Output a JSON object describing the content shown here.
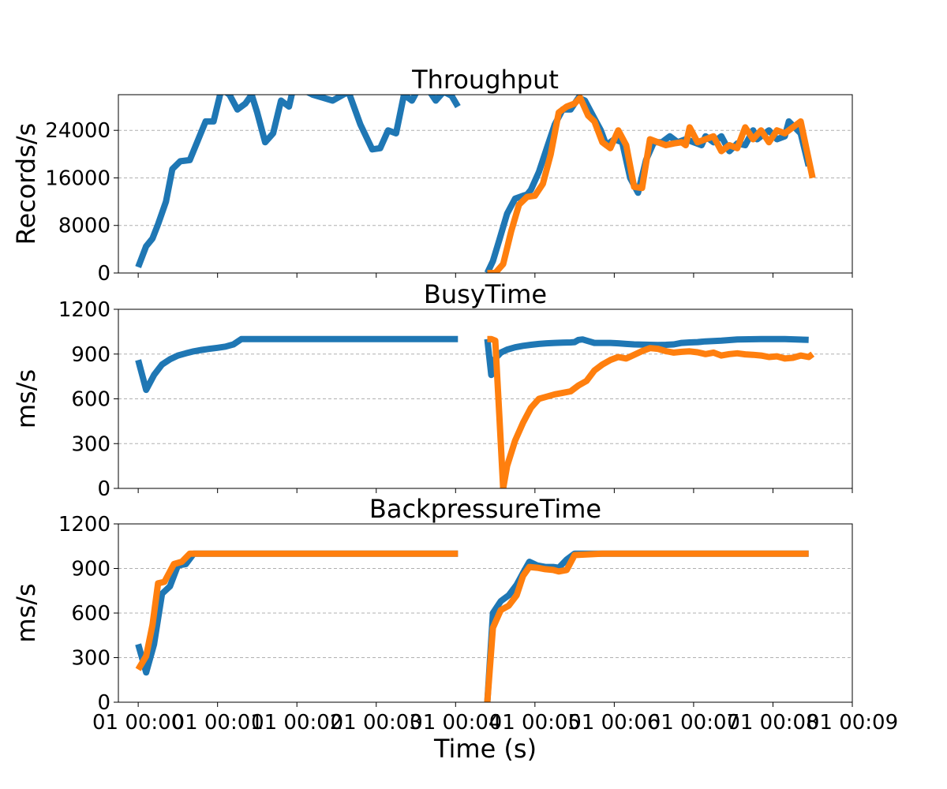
{
  "chart_data": {
    "type": "line",
    "xlabel": "Time (s)",
    "x_tick_labels": [
      "01 00:00",
      "01 00:01",
      "01 00:02",
      "01 00:03",
      "01 00:04",
      "01 00:05",
      "01 00:06",
      "01 00:07",
      "01 00:08",
      "01 00:09"
    ],
    "colors": {
      "series_a": "#1f77b4",
      "series_b": "#ff7f0e"
    },
    "grid": "y-dashed",
    "panels": [
      {
        "title": "Throughput",
        "ylabel": "Records/s",
        "ylim": [
          0,
          30000
        ],
        "yticks": [
          0,
          8000,
          16000,
          24000
        ],
        "series": [
          {
            "color": "#1f77b4",
            "x": [
              0.15,
              0.25,
              0.33,
              0.4,
              0.5,
              0.58,
              0.68,
              0.8,
              1.0,
              1.1,
              1.2,
              1.3,
              1.4,
              1.5,
              1.58,
              1.65,
              1.75,
              1.85,
              1.95,
              2.05,
              2.12,
              2.2,
              2.35,
              2.6,
              2.8,
              2.95,
              3.1,
              3.2,
              3.3,
              3.4,
              3.5,
              3.6,
              3.7,
              3.8,
              3.9,
              4.0,
              4.1,
              4.18
            ],
            "y": [
              1000,
              4500,
              5800,
              8200,
              12000,
              17500,
              18800,
              19000,
              25500,
              25500,
              31000,
              30000,
              27500,
              28500,
              30000,
              27000,
              22000,
              23500,
              29000,
              28000,
              32000,
              31000,
              30000,
              29000,
              30500,
              25000,
              20800,
              21000,
              24000,
              23500,
              30000,
              29000,
              31500,
              31000,
              29000,
              30500,
              29800,
              28000
            ]
          },
          {
            "color": "#1f77b4",
            "x": [
              4.55,
              4.62,
              4.7,
              4.8,
              4.9,
              5.0,
              5.05,
              5.1,
              5.2,
              5.3,
              5.4,
              5.5,
              5.6,
              5.7,
              5.78,
              5.9,
              5.98,
              6.05,
              6.15,
              6.25,
              6.35,
              6.45,
              6.55,
              6.65,
              6.75,
              6.85,
              6.95,
              7.05,
              7.15,
              7.25,
              7.3,
              7.4,
              7.5,
              7.6,
              7.7,
              7.8,
              7.9,
              7.95,
              8.1,
              8.2,
              8.3,
              8.35,
              8.5,
              8.6
            ],
            "y": [
              0,
              2000,
              5500,
              10000,
              12500,
              13000,
              13200,
              14000,
              17000,
              21000,
              25000,
              27500,
              27500,
              29500,
              29000,
              26000,
              24000,
              21500,
              22500,
              22000,
              16000,
              13500,
              19000,
              22000,
              22000,
              23000,
              22000,
              22500,
              22000,
              21500,
              23000,
              22000,
              23000,
              20500,
              21800,
              21500,
              24000,
              22500,
              24000,
              22500,
              23000,
              25500,
              23500,
              18000
            ]
          },
          {
            "color": "#ff7f0e",
            "x": [
              4.55,
              4.65,
              4.75,
              4.85,
              4.95,
              5.05,
              5.15,
              5.25,
              5.35,
              5.45,
              5.55,
              5.65,
              5.72,
              5.82,
              5.9,
              6.0,
              6.1,
              6.2,
              6.3,
              6.4,
              6.5,
              6.6,
              6.7,
              6.8,
              6.9,
              7.0,
              7.05,
              7.1,
              7.2,
              7.3,
              7.4,
              7.5,
              7.6,
              7.7,
              7.8,
              7.9,
              8.0,
              8.1,
              8.2,
              8.3,
              8.4,
              8.5,
              8.65
            ],
            "y": [
              0,
              0,
              1500,
              7000,
              11500,
              12800,
              13000,
              15000,
              20000,
              27000,
              28000,
              28500,
              29500,
              26500,
              25500,
              22000,
              21000,
              24000,
              21500,
              14500,
              14300,
              22500,
              22000,
              21500,
              21800,
              22000,
              21500,
              24500,
              22000,
              22500,
              23000,
              20500,
              21500,
              21000,
              24500,
              22500,
              24000,
              22000,
              24000,
              23500,
              24500,
              25500,
              16000
            ]
          }
        ]
      },
      {
        "title": "BusyTime",
        "ylabel": "ms/s",
        "ylim": [
          0,
          1200
        ],
        "yticks": [
          0,
          300,
          600,
          900,
          1200
        ],
        "series": [
          {
            "color": "#1f77b4",
            "x": [
              0.15,
              0.25,
              0.35,
              0.45,
              0.55,
              0.65,
              0.75,
              0.85,
              0.95,
              1.05,
              1.15,
              1.25,
              1.35,
              1.45,
              1.5,
              1.7,
              2.0,
              3.0,
              4.0,
              4.18
            ],
            "y": [
              860,
              660,
              760,
              830,
              865,
              890,
              905,
              918,
              928,
              935,
              942,
              950,
              965,
              1000,
              1000,
              1000,
              1000,
              1000,
              1000,
              1000
            ]
          },
          {
            "color": "#1f77b4",
            "x": [
              4.55,
              4.6,
              4.65,
              4.72,
              4.8,
              4.9,
              5.0,
              5.1,
              5.2,
              5.3,
              5.4,
              5.5,
              5.6,
              5.65,
              5.7,
              5.75,
              5.8,
              5.9,
              6.0,
              6.1,
              6.2,
              6.3,
              6.4,
              6.5,
              6.6,
              6.7,
              6.8,
              6.9,
              7.0,
              7.1,
              7.2,
              7.3,
              7.5,
              7.7,
              8.0,
              8.3,
              8.6
            ],
            "y": [
              1000,
              760,
              870,
              910,
              930,
              945,
              955,
              962,
              968,
              972,
              975,
              977,
              978,
              980,
              995,
              998,
              990,
              975,
              975,
              975,
              972,
              968,
              965,
              963,
              962,
              961,
              962,
              965,
              975,
              978,
              980,
              985,
              990,
              998,
              1000,
              1000,
              995
            ]
          },
          {
            "color": "#ff7f0e",
            "x": [
              4.55,
              4.6,
              4.65,
              4.7,
              4.75,
              4.8,
              4.9,
              5.0,
              5.1,
              5.2,
              5.3,
              5.4,
              5.5,
              5.6,
              5.7,
              5.8,
              5.9,
              6.0,
              6.1,
              6.2,
              6.3,
              6.4,
              6.5,
              6.6,
              6.7,
              6.8,
              6.9,
              7.0,
              7.1,
              7.2,
              7.3,
              7.4,
              7.5,
              7.6,
              7.7,
              7.8,
              7.9,
              8.0,
              8.1,
              8.2,
              8.3,
              8.4,
              8.5,
              8.6,
              8.65
            ],
            "y": [
              1000,
              1000,
              990,
              500,
              0,
              150,
              320,
              440,
              540,
              600,
              615,
              630,
              640,
              650,
              690,
              720,
              790,
              830,
              860,
              880,
              870,
              895,
              920,
              940,
              935,
              920,
              910,
              915,
              918,
              912,
              900,
              910,
              890,
              900,
              905,
              898,
              895,
              890,
              880,
              885,
              870,
              875,
              890,
              880,
              900
            ]
          }
        ]
      },
      {
        "title": "BackpressureTime",
        "ylabel": "ms/s",
        "ylim": [
          0,
          1200
        ],
        "yticks": [
          0,
          300,
          600,
          900,
          1200
        ],
        "series": [
          {
            "color": "#1f77b4",
            "x": [
              0.15,
              0.25,
              0.35,
              0.45,
              0.55,
              0.65,
              0.75,
              0.85,
              1.0,
              1.5,
              2.0,
              3.0,
              4.0,
              4.18
            ],
            "y": [
              390,
              200,
              390,
              730,
              780,
              920,
              930,
              1000,
              1000,
              1000,
              1000,
              1000,
              1000,
              1000
            ]
          },
          {
            "color": "#1f77b4",
            "x": [
              4.55,
              4.62,
              4.72,
              4.82,
              4.92,
              5.0,
              5.08,
              5.18,
              5.28,
              5.38,
              5.45,
              5.55,
              5.65,
              6.0,
              7.0,
              8.0,
              8.6
            ],
            "y": [
              0,
              600,
              680,
              720,
              790,
              870,
              945,
              920,
              910,
              910,
              905,
              960,
              1000,
              1000,
              1000,
              1000,
              1000
            ]
          },
          {
            "color": "#ff7f0e",
            "x": [
              0.15,
              0.25,
              0.33,
              0.4,
              0.48,
              0.6,
              0.7,
              0.8,
              0.88,
              1.0,
              1.5,
              2.0,
              3.0,
              4.0,
              4.18
            ],
            "y": [
              220,
              310,
              520,
              800,
              810,
              930,
              945,
              1000,
              1000,
              1000,
              1000,
              1000,
              1000,
              1000,
              1000
            ]
          },
          {
            "color": "#ff7f0e",
            "x": [
              4.55,
              4.62,
              4.72,
              4.82,
              4.92,
              5.0,
              5.08,
              5.18,
              5.28,
              5.38,
              5.45,
              5.55,
              5.65,
              6.0,
              7.0,
              8.0,
              8.6
            ],
            "y": [
              0,
              500,
              620,
              650,
              720,
              850,
              910,
              905,
              895,
              890,
              880,
              890,
              990,
              1000,
              1000,
              1000,
              1000
            ]
          }
        ]
      }
    ]
  }
}
